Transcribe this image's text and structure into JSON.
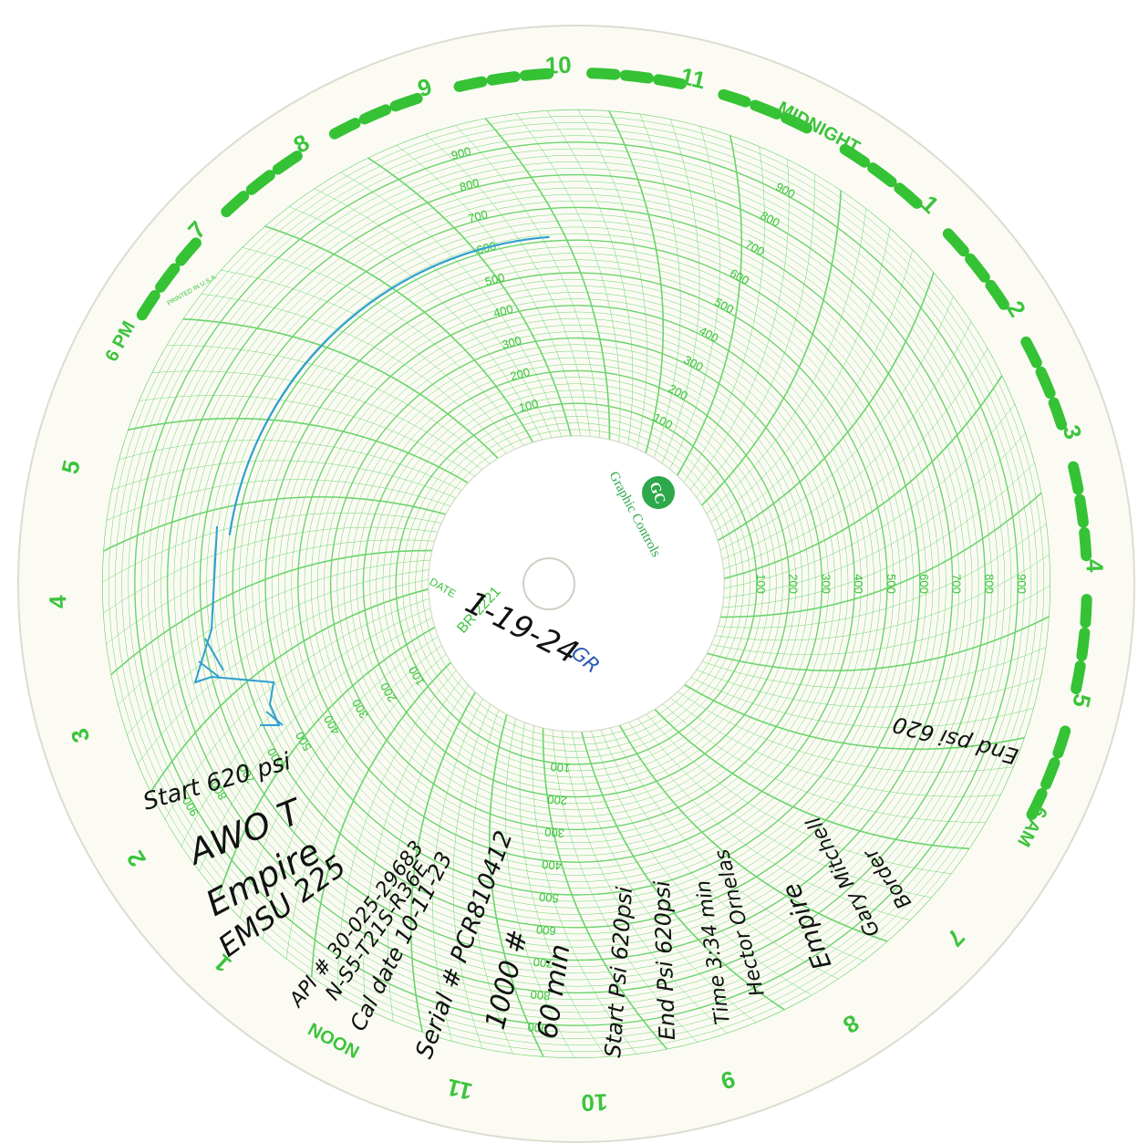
{
  "chart_face": {
    "hour_labels": [
      "6 PM",
      "7",
      "8",
      "9",
      "10",
      "11",
      "MIDNIGHT",
      "1",
      "2",
      "3",
      "4",
      "5",
      "6 AM",
      "7",
      "8",
      "9",
      "10",
      "11",
      "NOON",
      "1",
      "2",
      "3",
      "4",
      "5"
    ],
    "scale_labels": [
      "100",
      "200",
      "300",
      "400",
      "500",
      "600",
      "700",
      "800",
      "900"
    ],
    "printed_note": "PRINTED IN U.S.A.",
    "logo_text": "Graphic Controls",
    "date_label": "DATE",
    "chart_code": "BR 2221"
  },
  "handwriting": {
    "date": "1-19-24",
    "initials": "GR",
    "start_psi": "Start 620 psi",
    "line2": "AWO T",
    "line3": "Empire",
    "line4": "EMSU 225",
    "api": "API # 30-025-29683",
    "location": "N-S5-T21S-R36E",
    "cal_date": "Cal date 10-11-23",
    "serial": "Serial # PCR810412",
    "range": "1000 #",
    "duration": "60 min",
    "start_ps": "Start Psi 620psi",
    "end_ps": "End Psi 620psi",
    "time": "Time 3:34 min",
    "hector": "Hector Ornelas",
    "empire2": "Empire",
    "gary": "Gary Mitchell",
    "border": "Border",
    "end_psi": "End psi 620"
  },
  "colors": {
    "grid": "#6cd46c",
    "accent": "#35c235",
    "trace": "#2f9fd0",
    "ink": "#111111"
  }
}
